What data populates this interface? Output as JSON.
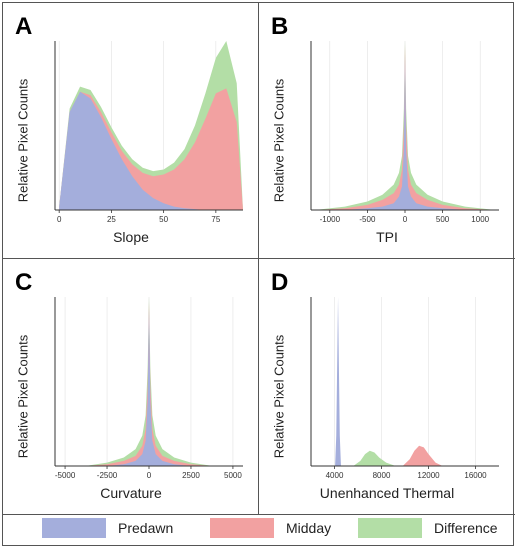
{
  "colors": {
    "predawn": "#a4aedc",
    "midday": "#f2a1a1",
    "difference": "#b3dea6"
  },
  "legend": [
    {
      "label": "Predawn",
      "color": "#a4aedc"
    },
    {
      "label": "Midday",
      "color": "#f2a1a1"
    },
    {
      "label": "Difference",
      "color": "#b3dea6"
    }
  ],
  "panels": {
    "A": {
      "label": "A",
      "xlabel": "Slope",
      "ylabel": "Relative Pixel Counts"
    },
    "B": {
      "label": "B",
      "xlabel": "TPI",
      "ylabel": "Relative Pixel Counts"
    },
    "C": {
      "label": "C",
      "xlabel": "Curvature",
      "ylabel": "Relative Pixel Counts"
    },
    "D": {
      "label": "D",
      "xlabel": "Unenhanced Thermal",
      "ylabel": "Relative Pixel Counts"
    }
  },
  "chart_data": [
    {
      "type": "area",
      "panel": "A",
      "xlabel": "Slope",
      "ylabel": "Relative Pixel Counts",
      "xlim": [
        -2,
        88
      ],
      "xticks": [
        0,
        25,
        50,
        75
      ],
      "ylim": [
        0,
        1
      ],
      "x": [
        0,
        5,
        10,
        15,
        20,
        25,
        30,
        35,
        40,
        45,
        50,
        55,
        60,
        65,
        70,
        75,
        80,
        85,
        88
      ],
      "series": [
        {
          "name": "Difference",
          "values": [
            0.02,
            0.6,
            0.73,
            0.71,
            0.61,
            0.49,
            0.38,
            0.3,
            0.25,
            0.23,
            0.24,
            0.28,
            0.36,
            0.5,
            0.69,
            0.9,
            1.0,
            0.75,
            0.0
          ]
        },
        {
          "name": "Midday",
          "values": [
            0.02,
            0.58,
            0.7,
            0.68,
            0.58,
            0.46,
            0.35,
            0.27,
            0.22,
            0.2,
            0.21,
            0.24,
            0.3,
            0.4,
            0.54,
            0.69,
            0.72,
            0.52,
            0.0
          ]
        },
        {
          "name": "Predawn",
          "values": [
            0.02,
            0.58,
            0.7,
            0.66,
            0.55,
            0.42,
            0.3,
            0.2,
            0.12,
            0.07,
            0.04,
            0.02,
            0.01,
            0.005,
            0.0,
            0.0,
            0.0,
            0.0,
            0.0
          ]
        }
      ]
    },
    {
      "type": "area",
      "panel": "B",
      "xlabel": "TPI",
      "ylabel": "Relative Pixel Counts",
      "xlim": [
        -1250,
        1250
      ],
      "xticks": [
        -1000,
        -500,
        0,
        500,
        1000
      ],
      "ylim": [
        0,
        1
      ],
      "x": [
        -1200,
        -800,
        -500,
        -300,
        -150,
        -80,
        -40,
        -15,
        0,
        15,
        40,
        80,
        150,
        300,
        500,
        800,
        1200
      ],
      "series": [
        {
          "name": "Difference",
          "values": [
            0.0,
            0.02,
            0.05,
            0.09,
            0.15,
            0.22,
            0.32,
            0.6,
            1.0,
            0.6,
            0.32,
            0.22,
            0.15,
            0.09,
            0.05,
            0.02,
            0.0
          ]
        },
        {
          "name": "Midday",
          "values": [
            0.0,
            0.01,
            0.03,
            0.06,
            0.1,
            0.15,
            0.24,
            0.5,
            0.98,
            0.5,
            0.24,
            0.15,
            0.1,
            0.06,
            0.03,
            0.01,
            0.0
          ]
        },
        {
          "name": "Predawn",
          "values": [
            0.0,
            0.0,
            0.01,
            0.02,
            0.04,
            0.08,
            0.14,
            0.35,
            0.92,
            0.35,
            0.14,
            0.08,
            0.04,
            0.02,
            0.01,
            0.0,
            0.0
          ]
        }
      ]
    },
    {
      "type": "area",
      "panel": "C",
      "xlabel": "Curvature",
      "ylabel": "Relative Pixel Counts",
      "xlim": [
        -5600,
        5600
      ],
      "xticks": [
        -5000,
        -2500,
        0,
        2500,
        5000
      ],
      "ylim": [
        0,
        1
      ],
      "x": [
        -3800,
        -2500,
        -1500,
        -800,
        -400,
        -200,
        -80,
        0,
        80,
        200,
        400,
        800,
        1500,
        2500,
        3800
      ],
      "series": [
        {
          "name": "Difference",
          "values": [
            0.0,
            0.02,
            0.05,
            0.1,
            0.18,
            0.3,
            0.58,
            1.0,
            0.58,
            0.3,
            0.18,
            0.1,
            0.05,
            0.02,
            0.0
          ]
        },
        {
          "name": "Midday",
          "values": [
            0.0,
            0.01,
            0.03,
            0.06,
            0.12,
            0.22,
            0.48,
            0.97,
            0.48,
            0.22,
            0.12,
            0.06,
            0.03,
            0.01,
            0.0
          ]
        },
        {
          "name": "Predawn",
          "values": [
            0.0,
            0.0,
            0.01,
            0.03,
            0.07,
            0.15,
            0.38,
            0.93,
            0.38,
            0.15,
            0.07,
            0.03,
            0.01,
            0.0,
            0.0
          ]
        }
      ]
    },
    {
      "type": "area",
      "panel": "D",
      "xlabel": "Unenhanced Thermal",
      "ylabel": "Relative Pixel Counts",
      "xlim": [
        2000,
        18000
      ],
      "xticks": [
        4000,
        8000,
        12000,
        16000
      ],
      "ylim": [
        0,
        1
      ],
      "x": [
        4050,
        4150,
        4250,
        4300,
        4350,
        4450,
        4550,
        5000,
        5600,
        6200,
        6600,
        7000,
        7400,
        7800,
        8400,
        9200,
        9800,
        10400,
        10800,
        11200,
        11600,
        12000,
        12600,
        13200
      ],
      "series": [
        {
          "name": "Predawn",
          "values": [
            0.0,
            0.18,
            0.72,
            1.0,
            0.72,
            0.18,
            0.0,
            0.0,
            0.0,
            0.0,
            0.0,
            0.0,
            0.0,
            0.0,
            0.0,
            0.0,
            0.0,
            0.0,
            0.0,
            0.0,
            0.0,
            0.0,
            0.0,
            0.0
          ]
        },
        {
          "name": "Difference",
          "values": [
            0.0,
            0.0,
            0.0,
            0.0,
            0.0,
            0.0,
            0.0,
            0.0,
            0.0,
            0.03,
            0.07,
            0.09,
            0.08,
            0.05,
            0.02,
            0.0,
            0.0,
            0.0,
            0.0,
            0.0,
            0.0,
            0.0,
            0.0,
            0.0
          ]
        },
        {
          "name": "Midday",
          "values": [
            0.0,
            0.0,
            0.0,
            0.0,
            0.0,
            0.0,
            0.0,
            0.0,
            0.0,
            0.0,
            0.0,
            0.0,
            0.0,
            0.0,
            0.0,
            0.0,
            0.0,
            0.04,
            0.09,
            0.12,
            0.11,
            0.07,
            0.02,
            0.0
          ]
        }
      ]
    }
  ]
}
